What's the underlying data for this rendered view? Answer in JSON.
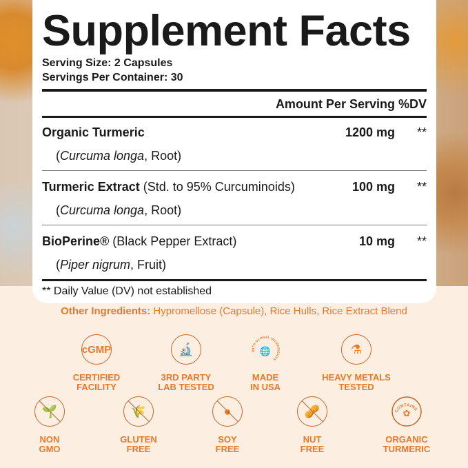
{
  "facts": {
    "title": "Supplement Facts",
    "serving_size": "Serving Size: 2 Capsules",
    "servings_per_container": "Servings Per Container: 30",
    "amount_header": "Amount Per Serving",
    "dv_header": "%DV",
    "ingredients": [
      {
        "name": "Organic Turmeric",
        "detail": "",
        "source_species": "Curcuma longa",
        "source_part": ", Root)",
        "amount": "1200 mg",
        "dv": "**"
      },
      {
        "name": "Turmeric Extract",
        "detail": " (Std. to 95% Curcuminoids)",
        "source_species": "Curcuma longa",
        "source_part": ", Root)",
        "amount": "100 mg",
        "dv": "**"
      },
      {
        "name": "BioPerine®",
        "detail": " (Black Pepper Extract)",
        "source_species": "Piper nigrum",
        "source_part": ", Fruit)",
        "amount": "10 mg",
        "dv": "**"
      }
    ],
    "footnote": "** Daily Value (DV) not established"
  },
  "other": {
    "label": "Other Ingredients:",
    "value": " Hypromellose (Capsule), Rice Hulls, Rice Extract Blend"
  },
  "badges": [
    {
      "icon": "cgmp-icon",
      "glyph": "cGMP",
      "line1": "CERTIFIED",
      "line2": "FACILITY"
    },
    {
      "icon": "microscope-icon",
      "glyph": "🔬",
      "line1": "3RD PARTY",
      "line2": "LAB TESTED"
    },
    {
      "icon": "usa-globe-icon",
      "glyph": "🌐",
      "line1": "MADE",
      "line2": "IN USA",
      "ring_text": "WITH GLOBAL INGREDIENTS"
    },
    {
      "icon": "flask-check-icon",
      "glyph": "⚗",
      "line1": "HEAVY METALS",
      "line2": "TESTED"
    },
    {
      "icon": "non-gmo-icon",
      "glyph": "🌱",
      "line1": "NON",
      "line2": "GMO"
    },
    {
      "icon": "gluten-free-icon",
      "glyph": "🌾",
      "line1": "GLUTEN",
      "line2": "FREE"
    },
    {
      "icon": "soy-free-icon",
      "glyph": "●",
      "line1": "SOY",
      "line2": "FREE"
    },
    {
      "icon": "nut-free-icon",
      "glyph": "🥜",
      "line1": "NUT",
      "line2": "FREE"
    },
    {
      "icon": "turmeric-icon",
      "glyph": "✿",
      "line1": "ORGANIC",
      "line2": "TURMERIC",
      "ring_text": "CONTAINS"
    }
  ],
  "colors": {
    "accent": "#e8782a",
    "background": "#fdeee2",
    "panel": "#ffffff"
  }
}
